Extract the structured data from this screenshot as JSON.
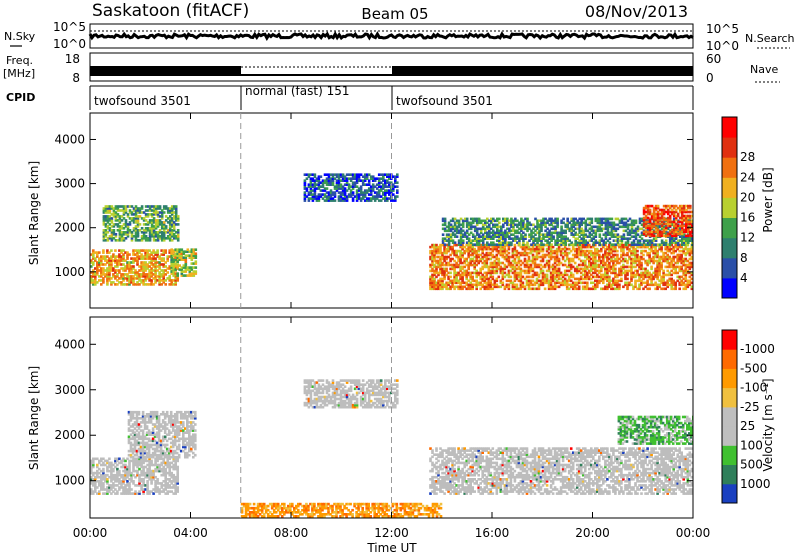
{
  "header": {
    "title": "Saskatoon (fitACF)",
    "beam": "Beam 05",
    "date": "08/Nov/2013"
  },
  "top_panels": {
    "nsky_label": "N.Sky",
    "nsearch_label": "N.Search",
    "nsky_ticks": [
      "10^5",
      "10^0"
    ],
    "nsearch_ticks": [
      "10^5",
      "10^0"
    ],
    "freq_label_line1": "Freq.",
    "freq_label_line2": "[MHz]",
    "freq_ticks": [
      "18",
      "8"
    ],
    "nave_label": "Nave",
    "nave_ticks": [
      "60",
      "0"
    ],
    "cpid_label": "CPID",
    "cpid_segments": [
      {
        "label": "twofsound 3501",
        "start_hour": 0,
        "end_hour": 6
      },
      {
        "label": "normal (fast) 151",
        "start_hour": 6,
        "end_hour": 12
      },
      {
        "label": "twofsound 3501",
        "start_hour": 12,
        "end_hour": 24
      }
    ]
  },
  "colors": {
    "power_scale": [
      "#0000ff",
      "#2a4fa8",
      "#2e7f6e",
      "#3ea04a",
      "#b8d030",
      "#f0b020",
      "#f07010",
      "#e03010",
      "#ff0000"
    ],
    "velocity_scale": [
      "#ff0000",
      "#ff6a00",
      "#ff9a00",
      "#f0c040",
      "#bfbfbf",
      "#bfbfbf",
      "#40c030",
      "#2f7f5a",
      "#1a40c0"
    ],
    "ground_scatter": "#bdbdbd"
  },
  "chart_data": [
    {
      "type": "heatmap",
      "panel": "power",
      "xlabel": "Time UT",
      "ylabel": "Slant Range [km]",
      "x_range_hours": [
        0,
        24
      ],
      "ylim": [
        180,
        4600
      ],
      "y_ticks": [
        1000,
        2000,
        3000,
        4000
      ],
      "x_ticks": [
        "00:00",
        "04:00",
        "08:00",
        "12:00",
        "16:00",
        "20:00",
        "00:00"
      ],
      "colorbar": {
        "label": "Power [dB]",
        "ticks": [
          4,
          8,
          12,
          16,
          20,
          24,
          28
        ],
        "range": [
          0,
          32
        ]
      },
      "echo_regions": [
        {
          "t0": 0.0,
          "t1": 3.5,
          "r0": 700,
          "r1": 1500,
          "value": 20
        },
        {
          "t0": 0.5,
          "t1": 3.5,
          "r0": 1700,
          "r1": 2500,
          "value": 12
        },
        {
          "t0": 3.2,
          "t1": 4.2,
          "r0": 900,
          "r1": 1500,
          "value": 16
        },
        {
          "t0": 8.5,
          "t1": 12.2,
          "r0": 2600,
          "r1": 3200,
          "value": 6
        },
        {
          "t0": 13.5,
          "t1": 24.0,
          "r0": 600,
          "r1": 1600,
          "value": 22
        },
        {
          "t0": 14.0,
          "t1": 24.0,
          "r0": 1600,
          "r1": 2200,
          "value": 10
        },
        {
          "t0": 22.0,
          "t1": 24.0,
          "r0": 1800,
          "r1": 2500,
          "value": 26
        }
      ]
    },
    {
      "type": "heatmap",
      "panel": "velocity",
      "xlabel": "Time UT",
      "ylabel": "Slant Range [km]",
      "x_range_hours": [
        0,
        24
      ],
      "ylim": [
        180,
        4600
      ],
      "y_ticks": [
        1000,
        2000,
        3000,
        4000
      ],
      "x_ticks": [
        "00:00",
        "04:00",
        "08:00",
        "12:00",
        "16:00",
        "20:00",
        "00:00"
      ],
      "colorbar": {
        "label": "Velocity [m s⁻¹]",
        "ticks": [
          "1000",
          "500",
          "100",
          "25",
          "-25",
          "-100",
          "-500",
          "-1000"
        ]
      },
      "echo_regions": [
        {
          "t0": 0.0,
          "t1": 3.5,
          "r0": 700,
          "r1": 1500,
          "value": "ground"
        },
        {
          "t0": 1.5,
          "t1": 4.2,
          "r0": 1500,
          "r1": 2500,
          "value": "ground"
        },
        {
          "t0": 8.5,
          "t1": 12.2,
          "r0": 2600,
          "r1": 3200,
          "value": "ground"
        },
        {
          "t0": 13.5,
          "t1": 24.0,
          "r0": 700,
          "r1": 1700,
          "value": "ground"
        },
        {
          "t0": 6.0,
          "t1": 14.0,
          "r0": 200,
          "r1": 500,
          "value": -100
        },
        {
          "t0": 21.0,
          "t1": 24.0,
          "r0": 1800,
          "r1": 2400,
          "value": 100
        }
      ]
    }
  ],
  "vertical_markers_hours": [
    6,
    12
  ]
}
